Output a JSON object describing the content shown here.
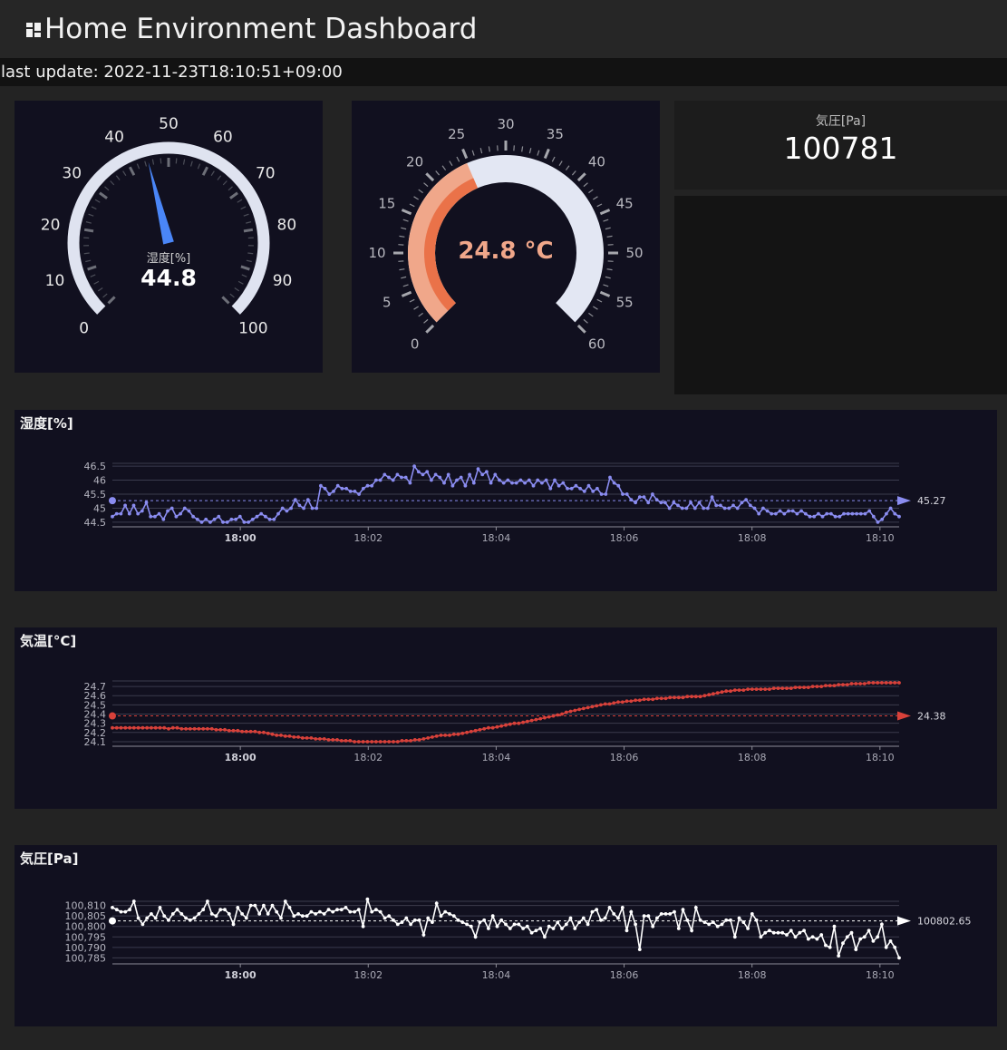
{
  "header": {
    "title": "Home Environment Dashboard",
    "icon": "dashboard-grid-icon"
  },
  "last_update": "last update: 2022-11-23T18:10:51+09:00",
  "humidity_gauge": {
    "label": "湿度[%]",
    "value": 44.8,
    "value_text": "44.8",
    "min": 0,
    "max": 100,
    "ticks": [
      "0",
      "10",
      "20",
      "30",
      "40",
      "50",
      "60",
      "70",
      "80",
      "90",
      "100"
    ],
    "needle_color": "#4a86f7"
  },
  "temperature_gauge": {
    "value": 24.8,
    "value_text": "24.8 °C",
    "min": 0,
    "max": 60,
    "ticks": [
      "0",
      "5",
      "10",
      "15",
      "20",
      "25",
      "30",
      "35",
      "40",
      "45",
      "50",
      "55",
      "60"
    ],
    "fill_color": "#f0a78a"
  },
  "pressure_stat": {
    "label": "気圧[Pa]",
    "value": "100781"
  },
  "chart_data": [
    {
      "type": "line",
      "title": "湿度[%]",
      "color": "#8a8cf0",
      "ylim": [
        44.4,
        46.6
      ],
      "y_ticks": [
        "44.5",
        "45",
        "45.5",
        "46",
        "46.5"
      ],
      "x_ticks": [
        "18:00",
        "18:02",
        "18:04",
        "18:06",
        "18:08",
        "18:10"
      ],
      "reference_value": "45.27",
      "x_start_min": -2.0,
      "x_end_min": 10.3,
      "values": [
        44.7,
        44.8,
        44.8,
        45.1,
        44.8,
        45.1,
        44.8,
        44.9,
        45.2,
        44.7,
        44.7,
        44.8,
        44.6,
        44.9,
        45.0,
        44.7,
        44.8,
        45.0,
        44.9,
        44.7,
        44.6,
        44.5,
        44.6,
        44.5,
        44.6,
        44.7,
        44.5,
        44.5,
        44.6,
        44.6,
        44.7,
        44.5,
        44.5,
        44.6,
        44.7,
        44.8,
        44.7,
        44.6,
        44.6,
        44.8,
        45.0,
        44.9,
        45.0,
        45.3,
        45.1,
        45.0,
        45.3,
        45.0,
        45.0,
        45.8,
        45.7,
        45.5,
        45.6,
        45.8,
        45.7,
        45.7,
        45.6,
        45.6,
        45.5,
        45.7,
        45.8,
        45.8,
        46.0,
        46.0,
        46.2,
        46.1,
        46.0,
        46.2,
        46.1,
        46.1,
        45.9,
        46.5,
        46.3,
        46.2,
        46.3,
        46.0,
        46.2,
        46.1,
        45.9,
        46.2,
        45.8,
        46.0,
        46.1,
        45.8,
        46.2,
        45.9,
        46.4,
        46.2,
        46.3,
        45.9,
        46.2,
        46.0,
        45.9,
        46.0,
        45.9,
        45.9,
        46.0,
        45.9,
        46.0,
        45.8,
        46.0,
        45.9,
        46.0,
        45.7,
        46.0,
        45.8,
        45.9,
        45.7,
        45.7,
        45.8,
        45.7,
        45.6,
        45.8,
        45.6,
        45.7,
        45.5,
        45.5,
        46.1,
        45.9,
        45.8,
        45.5,
        45.5,
        45.3,
        45.2,
        45.4,
        45.4,
        45.2,
        45.5,
        45.3,
        45.2,
        45.2,
        45.0,
        45.2,
        45.1,
        45.0,
        45.0,
        45.2,
        45.0,
        45.2,
        45.0,
        45.0,
        45.4,
        45.1,
        45.1,
        45.0,
        45.0,
        45.1,
        45.0,
        45.2,
        45.3,
        45.1,
        45.0,
        44.8,
        45.0,
        44.9,
        44.8,
        44.8,
        44.9,
        44.8,
        44.9,
        44.9,
        44.8,
        44.9,
        44.8,
        44.7,
        44.7,
        44.8,
        44.7,
        44.8,
        44.8,
        44.7,
        44.7,
        44.8,
        44.8,
        44.8,
        44.8,
        44.8,
        44.8,
        44.9,
        44.7,
        44.5,
        44.6,
        44.8,
        45.0,
        44.8,
        44.7
      ]
    },
    {
      "type": "line",
      "title": "気温[°C]",
      "color": "#d8413a",
      "ylim": [
        24.07,
        24.76
      ],
      "y_ticks": [
        "24.1",
        "24.2",
        "24.3",
        "24.4",
        "24.5",
        "24.6",
        "24.7"
      ],
      "x_ticks": [
        "18:00",
        "18:02",
        "18:04",
        "18:06",
        "18:08",
        "18:10"
      ],
      "reference_value": "24.38",
      "x_start_min": -2.0,
      "x_end_min": 10.3,
      "values": [
        24.25,
        24.25,
        24.25,
        24.25,
        24.25,
        24.25,
        24.25,
        24.25,
        24.25,
        24.25,
        24.25,
        24.25,
        24.25,
        24.24,
        24.25,
        24.25,
        24.24,
        24.24,
        24.24,
        24.24,
        24.24,
        24.24,
        24.24,
        24.24,
        24.23,
        24.23,
        24.23,
        24.22,
        24.22,
        24.22,
        24.21,
        24.21,
        24.21,
        24.21,
        24.2,
        24.2,
        24.19,
        24.18,
        24.17,
        24.17,
        24.16,
        24.16,
        24.15,
        24.15,
        24.14,
        24.14,
        24.14,
        24.13,
        24.13,
        24.13,
        24.12,
        24.12,
        24.12,
        24.11,
        24.11,
        24.11,
        24.1,
        24.1,
        24.1,
        24.1,
        24.1,
        24.1,
        24.1,
        24.1,
        24.1,
        24.1,
        24.1,
        24.11,
        24.11,
        24.11,
        24.12,
        24.12,
        24.13,
        24.14,
        24.15,
        24.16,
        24.17,
        24.17,
        24.17,
        24.18,
        24.18,
        24.19,
        24.2,
        24.21,
        24.22,
        24.23,
        24.24,
        24.25,
        24.25,
        24.26,
        24.27,
        24.28,
        24.29,
        24.3,
        24.3,
        24.31,
        24.32,
        24.33,
        24.34,
        24.35,
        24.36,
        24.37,
        24.38,
        24.39,
        24.4,
        24.42,
        24.43,
        24.44,
        24.45,
        24.46,
        24.47,
        24.48,
        24.49,
        24.5,
        24.51,
        24.51,
        24.52,
        24.53,
        24.53,
        24.54,
        24.54,
        24.55,
        24.55,
        24.56,
        24.56,
        24.56,
        24.57,
        24.57,
        24.57,
        24.58,
        24.58,
        24.58,
        24.58,
        24.59,
        24.59,
        24.59,
        24.59,
        24.6,
        24.61,
        24.62,
        24.63,
        24.64,
        24.65,
        24.65,
        24.66,
        24.66,
        24.66,
        24.67,
        24.67,
        24.67,
        24.67,
        24.67,
        24.67,
        24.68,
        24.68,
        24.68,
        24.68,
        24.68,
        24.69,
        24.69,
        24.69,
        24.69,
        24.7,
        24.7,
        24.7,
        24.71,
        24.71,
        24.71,
        24.72,
        24.72,
        24.72,
        24.73,
        24.73,
        24.73,
        24.73,
        24.74,
        24.74,
        24.74,
        24.74,
        24.74,
        24.74,
        24.74,
        24.74
      ]
    },
    {
      "type": "line",
      "title": "気圧[Pa]",
      "color": "#ffffff",
      "ylim": [
        100783,
        100812
      ],
      "y_ticks": [
        "100,785",
        "100,790",
        "100,795",
        "100,800",
        "100,805",
        "100,810"
      ],
      "x_ticks": [
        "18:00",
        "18:02",
        "18:04",
        "18:06",
        "18:08",
        "18:10"
      ],
      "reference_value": "100802.65",
      "x_start_min": -2.0,
      "x_end_min": 10.3,
      "values": [
        100809,
        100808,
        100807,
        100807,
        100808,
        100812,
        100804,
        100801,
        100804,
        100806,
        100804,
        100809,
        100805,
        100803,
        100806,
        100808,
        100806,
        100804,
        100803,
        100804,
        100806,
        100808,
        100812,
        100806,
        100805,
        100808,
        100808,
        100806,
        100801,
        100809,
        100806,
        100804,
        100810,
        100810,
        100806,
        100810,
        100806,
        100810,
        100807,
        100804,
        100812,
        100809,
        100805,
        100806,
        100805,
        100805,
        100807,
        100806,
        100807,
        100806,
        100808,
        100807,
        100808,
        100808,
        100809,
        100807,
        100807,
        100808,
        100800,
        100813,
        100807,
        100808,
        100807,
        100804,
        100805,
        100803,
        100801,
        100802,
        100804,
        100801,
        100803,
        100803,
        100796,
        100804,
        100802,
        100811,
        100805,
        100807,
        100806,
        100805,
        100803,
        100802,
        100801,
        100800,
        100795,
        100802,
        100803,
        100799,
        100805,
        100800,
        100803,
        100801,
        100799,
        100801,
        100801,
        100799,
        100800,
        100797,
        100798,
        100799,
        100795,
        100800,
        100799,
        100802,
        100799,
        100801,
        100804,
        100799,
        100802,
        100804,
        100801,
        100807,
        100808,
        100803,
        100804,
        100809,
        100806,
        100804,
        100809,
        100798,
        100807,
        100801,
        100789,
        100805,
        100805,
        100800,
        100804,
        100806,
        100806,
        100806,
        100807,
        100799,
        100808,
        100803,
        100798,
        100809,
        100803,
        100802,
        100801,
        100802,
        100800,
        100801,
        100803,
        100803,
        100795,
        100804,
        100802,
        100799,
        100806,
        100803,
        100795,
        100797,
        100798,
        100797,
        100797,
        100797,
        100796,
        100798,
        100795,
        100797,
        100798,
        100794,
        100795,
        100794,
        100796,
        100791,
        100790,
        100800,
        100786,
        100792,
        100795,
        100797,
        100789,
        100794,
        100795,
        100798,
        100793,
        100795,
        100801,
        100790,
        100793,
        100790,
        100785
      ]
    }
  ]
}
